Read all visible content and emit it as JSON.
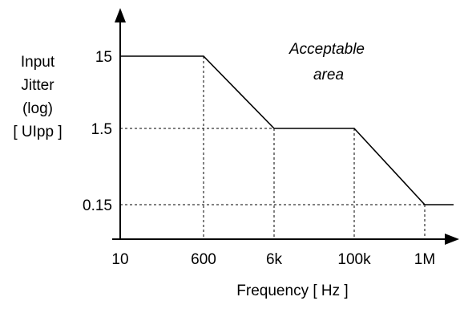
{
  "chart_data": {
    "type": "line",
    "xscale": "log",
    "yscale": "log",
    "xlabel": "Frequency [ Hz ]",
    "ylabel_lines": [
      "Input",
      "Jitter",
      "(log)",
      "[ UIpp ]"
    ],
    "x_ticks": [
      {
        "value": 10,
        "label": "10"
      },
      {
        "value": 600,
        "label": "600"
      },
      {
        "value": 6000,
        "label": "6k"
      },
      {
        "value": 100000,
        "label": "100k"
      },
      {
        "value": 1000000,
        "label": "1M"
      }
    ],
    "y_ticks": [
      {
        "value": 15,
        "label": "15"
      },
      {
        "value": 1.5,
        "label": "1.5"
      },
      {
        "value": 0.15,
        "label": "0.15"
      }
    ],
    "series": [
      {
        "x": [
          10,
          600,
          6000,
          100000,
          1000000,
          2000000
        ],
        "y": [
          15,
          15,
          1.5,
          1.5,
          0.15,
          0.15
        ]
      }
    ],
    "annotation_lines": [
      "Acceptable",
      "area"
    ],
    "guides": "dashed",
    "grid": false
  }
}
